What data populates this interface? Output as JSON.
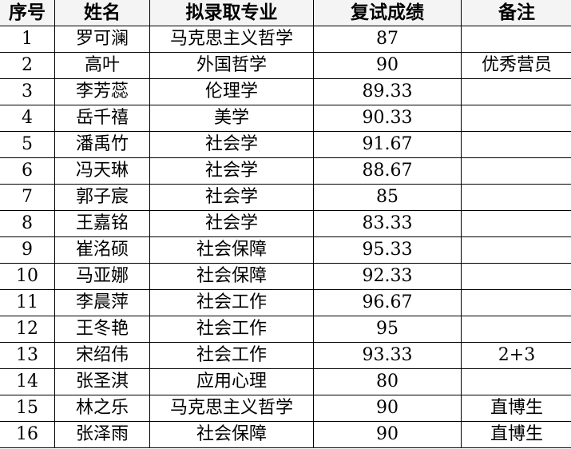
{
  "headers": [
    "序号",
    "姓名",
    "拟录取专业",
    "复试成绩",
    "备注"
  ],
  "rows": [
    [
      "1",
      "罗可澜",
      "马克思主义哲学",
      "87",
      ""
    ],
    [
      "2",
      "高叶",
      "外国哲学",
      "90",
      "优秀营员"
    ],
    [
      "3",
      "李芳蕊",
      "伦理学",
      "89.33",
      ""
    ],
    [
      "4",
      "岳千禧",
      "美学",
      "90.33",
      ""
    ],
    [
      "5",
      "潘禹竹",
      "社会学",
      "91.67",
      ""
    ],
    [
      "6",
      "冯天琳",
      "社会学",
      "88.67",
      ""
    ],
    [
      "7",
      "郭子宸",
      "社会学",
      "85",
      ""
    ],
    [
      "8",
      "王嘉铭",
      "社会学",
      "83.33",
      ""
    ],
    [
      "9",
      "崔洺硕",
      "社会保障",
      "95.33",
      ""
    ],
    [
      "10",
      "马亚娜",
      "社会保障",
      "92.33",
      ""
    ],
    [
      "11",
      "李晨萍",
      "社会工作",
      "96.67",
      ""
    ],
    [
      "12",
      "王冬艳",
      "社会工作",
      "95",
      ""
    ],
    [
      "13",
      "宋绍伟",
      "社会工作",
      "93.33",
      "2+3"
    ],
    [
      "14",
      "张圣淇",
      "应用心理",
      "80",
      ""
    ],
    [
      "15",
      "林之乐",
      "马克思主义哲学",
      "90",
      "直博生"
    ],
    [
      "16",
      "张泽雨",
      "社会保障",
      "90",
      "直博生"
    ]
  ]
}
